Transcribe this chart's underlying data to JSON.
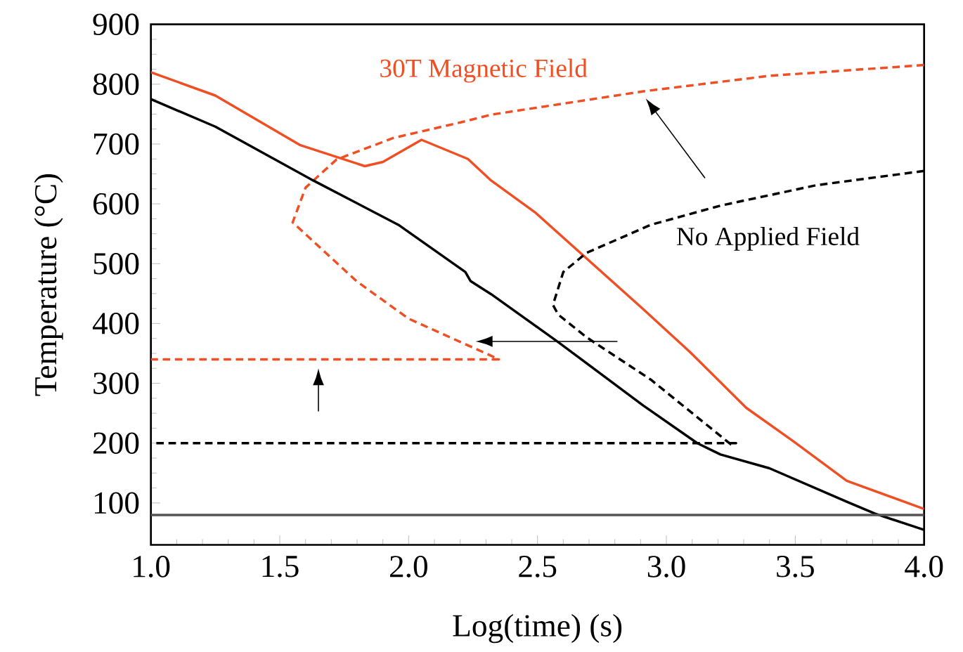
{
  "chart_data": {
    "type": "line",
    "xlabel": "Log(time) (s)",
    "ylabel": "Temperature (°C)",
    "xlim": [
      1.0,
      4.0
    ],
    "ylim": [
      30,
      900
    ],
    "xticks": [
      {
        "value": 1.0,
        "label": "1.0"
      },
      {
        "value": 1.5,
        "label": "1.5"
      },
      {
        "value": 2.0,
        "label": "2.0"
      },
      {
        "value": 2.5,
        "label": "2.5"
      },
      {
        "value": 3.0,
        "label": "3.0"
      },
      {
        "value": 3.5,
        "label": "3.5"
      },
      {
        "value": 4.0,
        "label": "4.0"
      }
    ],
    "yticks": [
      100,
      200,
      300,
      400,
      500,
      600,
      700,
      800,
      900
    ],
    "grid": false,
    "marker": "none",
    "series": [
      {
        "color": "#f04e23",
        "line_style": "solid",
        "x": [
          1.0,
          1.25,
          1.58,
          1.83,
          1.9,
          2.05,
          2.23,
          2.32,
          2.49,
          2.91,
          3.09,
          3.31,
          3.49,
          3.7,
          4.0
        ],
        "values": [
          820,
          781,
          698,
          663,
          670,
          707,
          675,
          639,
          586,
          424,
          353,
          259,
          204,
          137,
          90
        ]
      },
      {
        "name": "30T Magnetic Field",
        "color": "#f04e23",
        "line_style": "dashed",
        "x": [
          4.0,
          3.4,
          2.91,
          2.32,
          2.21,
          1.94,
          1.72,
          1.6,
          1.55,
          1.8,
          2.0,
          2.31,
          2.35,
          1.0
        ],
        "values": [
          832,
          814,
          788,
          749,
          737,
          710,
          674,
          627,
          569,
          470,
          408,
          348,
          340,
          340
        ]
      },
      {
        "color": "#000000",
        "line_style": "solid",
        "x": [
          1.0,
          1.25,
          1.63,
          1.96,
          2.22,
          2.24,
          2.32,
          2.58,
          2.91,
          3.12,
          3.21,
          3.4,
          3.7,
          3.81,
          4.0
        ],
        "values": [
          775,
          729,
          639,
          565,
          486,
          471,
          449,
          369,
          263,
          200,
          181,
          158,
          102,
          82,
          55
        ]
      },
      {
        "color": "#555555",
        "line_style": "solid",
        "x": [
          1.0,
          4.0
        ],
        "values": [
          80,
          80
        ]
      },
      {
        "name": "No Applied Field",
        "color": "#000000",
        "line_style": "dashed",
        "x": [
          4.0,
          3.58,
          3.21,
          2.94,
          2.69,
          2.6,
          2.56,
          2.58,
          2.69,
          2.94,
          3.25,
          3.27,
          1.0
        ],
        "values": [
          655,
          631,
          597,
          565,
          518,
          486,
          431,
          415,
          377,
          306,
          198,
          200,
          200
        ]
      }
    ]
  }
}
